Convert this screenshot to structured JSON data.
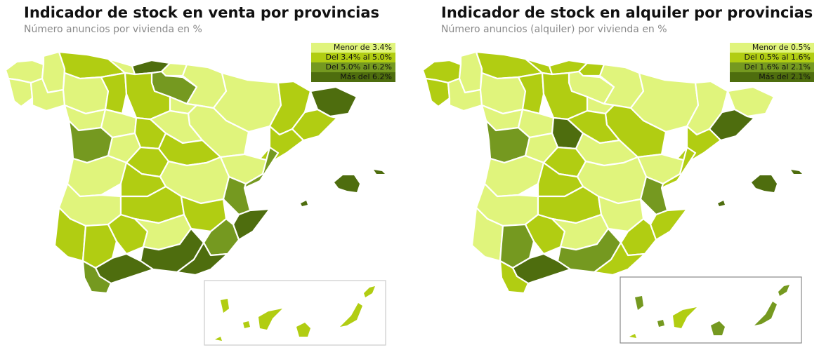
{
  "colors": {
    "c1": "#e0f47c",
    "c2": "#b1cd12",
    "c3": "#759920",
    "c4": "#4e6d0e"
  },
  "maps": [
    {
      "title": "Indicador de stock en venta por provincias",
      "subtitle": "Número anuncios por vivienda en %",
      "legend": [
        {
          "label": "Menor de 3.4%",
          "class": "c1"
        },
        {
          "label": "Del 3.4% al 5.0%",
          "class": "c2"
        },
        {
          "label": "Del 5.0% al 6.2%",
          "class": "c3"
        },
        {
          "label": "Más del 6.2%",
          "class": "c4"
        }
      ]
    },
    {
      "title": "Indicador de stock en alquiler por provincias",
      "subtitle": "Número anuncios (alquiler) por vivienda en %",
      "legend": [
        {
          "label": "Menor de 0.5%",
          "class": "c1"
        },
        {
          "label": "Del 0.5% al 1.6%",
          "class": "c2"
        },
        {
          "label": "Del 1.6% al 2.1%",
          "class": "c3"
        },
        {
          "label": "Más del 2.1%",
          "class": "c4"
        }
      ]
    }
  ]
}
